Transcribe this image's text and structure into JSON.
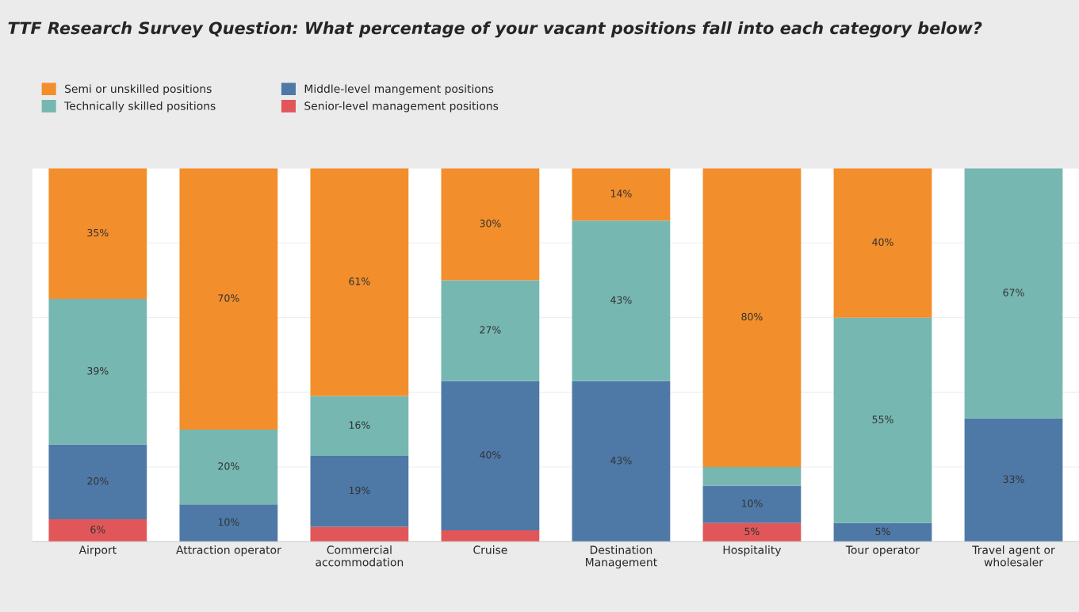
{
  "chart_data": {
    "type": "bar",
    "stacked": true,
    "title": "TTF Research Survey Question: What percentage of your vacant positions fall into each category below?",
    "categories": [
      "Airport",
      "Attraction operator",
      "Commercial\naccommodation",
      "Cruise",
      "Destination\nManagement",
      "Hospitality",
      "Tour operator",
      "Travel agent or\nwholesaler"
    ],
    "series": [
      {
        "name": "Senior-level management positions",
        "color": "#e15759",
        "values": [
          6,
          0,
          4,
          3,
          0,
          5,
          0,
          0
        ],
        "value_labels": [
          "6%",
          null,
          null,
          null,
          null,
          "5%",
          null,
          null
        ]
      },
      {
        "name": "Middle-level mangement positions",
        "color": "#4e79a7",
        "values": [
          20,
          10,
          19,
          40,
          43,
          10,
          5,
          33
        ],
        "value_labels": [
          "20%",
          "10%",
          "19%",
          "40%",
          "43%",
          "10%",
          "5%",
          "33%"
        ]
      },
      {
        "name": "Technically skilled positions",
        "color": "#76b7b2",
        "values": [
          39,
          20,
          16,
          27,
          43,
          5,
          55,
          67
        ],
        "value_labels": [
          "39%",
          "20%",
          "16%",
          "27%",
          "43%",
          null,
          "55%",
          "67%"
        ]
      },
      {
        "name": "Semi or unskilled positions",
        "color": "#f28e2b",
        "values": [
          35,
          70,
          61,
          30,
          14,
          80,
          40,
          0
        ],
        "value_labels": [
          "35%",
          "70%",
          "61%",
          "30%",
          "14%",
          "80%",
          "40%",
          null
        ]
      }
    ],
    "ylim": [
      0,
      100
    ],
    "yticks": [
      {
        "value": 0,
        "label": null
      },
      {
        "value": 20,
        "label": null
      },
      {
        "value": 40,
        "label": null
      },
      {
        "value": 60,
        "label": null
      },
      {
        "value": 80,
        "label": null
      },
      {
        "value": 100,
        "label": null
      }
    ],
    "grid": "y",
    "tick_labels": "x",
    "legend": "top left"
  }
}
